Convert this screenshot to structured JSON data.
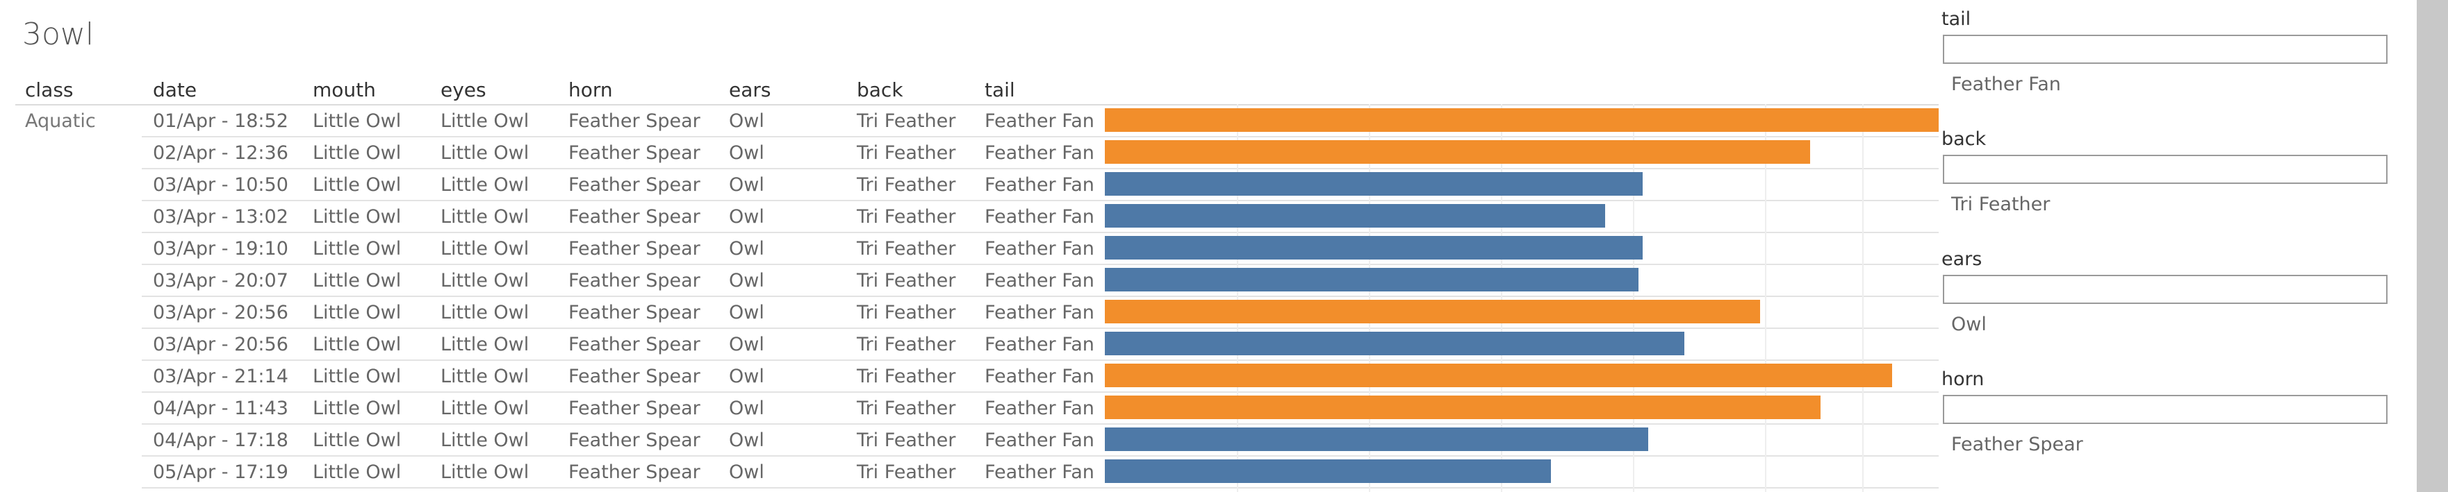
{
  "page": {
    "title": "3owl"
  },
  "columns": {
    "class": "class",
    "date": "date",
    "mouth": "mouth",
    "eyes": "eyes",
    "horn": "horn",
    "ears": "ears",
    "back": "back",
    "tail": "tail"
  },
  "class_value": "Aquatic",
  "colors": {
    "orange": "#F28E2B",
    "blue": "#4E79A7"
  },
  "rows": [
    {
      "date": "01/Apr - 18:52",
      "mouth": "Little Owl",
      "eyes": "Little Owl",
      "horn": "Feather Spear",
      "ears": "Owl",
      "back": "Tri Feather",
      "tail": "Feather Fan",
      "bar_fraction": 1.0,
      "bar_color": "orange"
    },
    {
      "date": "02/Apr - 12:36",
      "mouth": "Little Owl",
      "eyes": "Little Owl",
      "horn": "Feather Spear",
      "ears": "Owl",
      "back": "Tri Feather",
      "tail": "Feather Fan",
      "bar_fraction": 0.846,
      "bar_color": "orange"
    },
    {
      "date": "03/Apr - 10:50",
      "mouth": "Little Owl",
      "eyes": "Little Owl",
      "horn": "Feather Spear",
      "ears": "Owl",
      "back": "Tri Feather",
      "tail": "Feather Fan",
      "bar_fraction": 0.645,
      "bar_color": "blue"
    },
    {
      "date": "03/Apr - 13:02",
      "mouth": "Little Owl",
      "eyes": "Little Owl",
      "horn": "Feather Spear",
      "ears": "Owl",
      "back": "Tri Feather",
      "tail": "Feather Fan",
      "bar_fraction": 0.6,
      "bar_color": "blue"
    },
    {
      "date": "03/Apr - 19:10",
      "mouth": "Little Owl",
      "eyes": "Little Owl",
      "horn": "Feather Spear",
      "ears": "Owl",
      "back": "Tri Feather",
      "tail": "Feather Fan",
      "bar_fraction": 0.645,
      "bar_color": "blue"
    },
    {
      "date": "03/Apr - 20:07",
      "mouth": "Little Owl",
      "eyes": "Little Owl",
      "horn": "Feather Spear",
      "ears": "Owl",
      "back": "Tri Feather",
      "tail": "Feather Fan",
      "bar_fraction": 0.64,
      "bar_color": "blue"
    },
    {
      "date": "03/Apr - 20:56",
      "mouth": "Little Owl",
      "eyes": "Little Owl",
      "horn": "Feather Spear",
      "ears": "Owl",
      "back": "Tri Feather",
      "tail": "Feather Fan",
      "bar_fraction": 0.786,
      "bar_color": "orange"
    },
    {
      "date": "03/Apr - 20:56",
      "mouth": "Little Owl",
      "eyes": "Little Owl",
      "horn": "Feather Spear",
      "ears": "Owl",
      "back": "Tri Feather",
      "tail": "Feather Fan",
      "bar_fraction": 0.695,
      "bar_color": "blue"
    },
    {
      "date": "03/Apr - 21:14",
      "mouth": "Little Owl",
      "eyes": "Little Owl",
      "horn": "Feather Spear",
      "ears": "Owl",
      "back": "Tri Feather",
      "tail": "Feather Fan",
      "bar_fraction": 0.944,
      "bar_color": "orange"
    },
    {
      "date": "04/Apr - 11:43",
      "mouth": "Little Owl",
      "eyes": "Little Owl",
      "horn": "Feather Spear",
      "ears": "Owl",
      "back": "Tri Feather",
      "tail": "Feather Fan",
      "bar_fraction": 0.858,
      "bar_color": "orange"
    },
    {
      "date": "04/Apr - 17:18",
      "mouth": "Little Owl",
      "eyes": "Little Owl",
      "horn": "Feather Spear",
      "ears": "Owl",
      "back": "Tri Feather",
      "tail": "Feather Fan",
      "bar_fraction": 0.652,
      "bar_color": "blue"
    },
    {
      "date": "05/Apr - 17:19",
      "mouth": "Little Owl",
      "eyes": "Little Owl",
      "horn": "Feather Spear",
      "ears": "Owl",
      "back": "Tri Feather",
      "tail": "Feather Fan",
      "bar_fraction": 0.535,
      "bar_color": "blue"
    }
  ],
  "filters": [
    {
      "label": "tail",
      "input_value": "",
      "value": "Feather Fan"
    },
    {
      "label": "back",
      "input_value": "",
      "value": "Tri Feather"
    },
    {
      "label": "ears",
      "input_value": "",
      "value": "Owl"
    },
    {
      "label": "horn",
      "input_value": "",
      "value": "Feather Spear"
    }
  ]
}
